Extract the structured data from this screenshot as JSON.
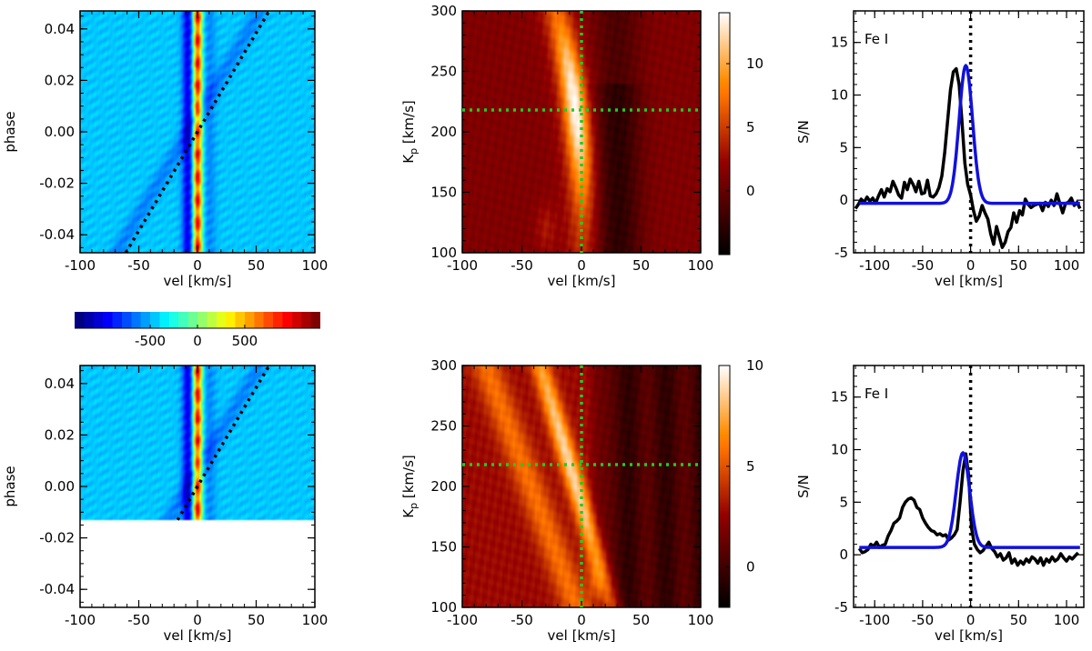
{
  "chart_data": [
    {
      "id": "tl",
      "type": "heatmap",
      "xlabel": "vel [km/s]",
      "ylabel": "phase",
      "xlim": [
        -100,
        100
      ],
      "ylim": [
        -0.047,
        0.047
      ],
      "xticks": [
        "-100",
        "-50",
        "0",
        "50",
        "100"
      ],
      "yticks": [
        "-0.04",
        "-0.02",
        "0.00",
        "0.02",
        "0.04"
      ],
      "data_phase_range": [
        -0.047,
        0.047
      ],
      "trail_velocity": 0,
      "planet_track": {
        "v_at_phase0": 0,
        "dv_dphase": 1300
      },
      "colormap": "jet"
    },
    {
      "id": "colorbar",
      "type": "colorbar",
      "colormap": "jet",
      "range": [
        -1300,
        1300
      ],
      "ticks": [
        "-500",
        "0",
        "500"
      ]
    },
    {
      "id": "bl",
      "type": "heatmap",
      "xlabel": "vel [km/s]",
      "ylabel": "phase",
      "xlim": [
        -100,
        100
      ],
      "ylim": [
        -0.047,
        0.047
      ],
      "xticks": [
        "-100",
        "-50",
        "0",
        "50",
        "100"
      ],
      "yticks": [
        "-0.04",
        "-0.02",
        "0.00",
        "0.02",
        "0.04"
      ],
      "data_phase_range": [
        -0.013,
        0.047
      ],
      "trail_velocity": 0,
      "planet_track": {
        "v_at_phase0": 0,
        "dv_dphase": 1300
      },
      "colormap": "jet"
    },
    {
      "id": "tm",
      "type": "heatmap",
      "xlabel": "vel [km/s]",
      "ylabel": "K",
      "ylabel_sub": "p",
      "ylabel_rest": " [km/s]",
      "xlim": [
        -100,
        100
      ],
      "ylim": [
        100,
        300
      ],
      "xticks": [
        "-100",
        "-50",
        "0",
        "50",
        "100"
      ],
      "yticks": [
        "100",
        "150",
        "200",
        "250",
        "300"
      ],
      "peak": {
        "vel": -5,
        "kp": 218
      },
      "crosshair": {
        "vel": 0,
        "kp": 218
      },
      "colormap": "gist_heat",
      "colorbar_range": [
        -5,
        14
      ],
      "colorbar_ticks": [
        "0",
        "5",
        "10"
      ]
    },
    {
      "id": "bm",
      "type": "heatmap",
      "xlabel": "vel [km/s]",
      "ylabel": "K",
      "ylabel_sub": "p",
      "ylabel_rest": " [km/s]",
      "xlim": [
        -100,
        100
      ],
      "ylim": [
        100,
        300
      ],
      "xticks": [
        "-100",
        "-50",
        "0",
        "50",
        "100"
      ],
      "yticks": [
        "100",
        "150",
        "200",
        "250",
        "300"
      ],
      "peak": {
        "vel": -10,
        "kp": 218
      },
      "crosshair": {
        "vel": 0,
        "kp": 218
      },
      "colormap": "gist_heat",
      "colorbar_range": [
        -2,
        10
      ],
      "colorbar_ticks": [
        "0",
        "5",
        "10"
      ]
    },
    {
      "id": "tr",
      "type": "line",
      "title": "",
      "annotation": "Fe I",
      "xlabel": "vel [km/s]",
      "ylabel": "S/N",
      "xlim": [
        -122,
        118
      ],
      "ylim": [
        -5,
        18
      ],
      "xticks": [
        "-100",
        "-50",
        "0",
        "50",
        "100"
      ],
      "yticks": [
        "-5",
        "0",
        "5",
        "10",
        "15"
      ],
      "vline": 0,
      "series": [
        {
          "color": "#000000",
          "x": [
            -120,
            -117,
            -114,
            -111,
            -108,
            -105,
            -102,
            -99,
            -96,
            -93,
            -90,
            -87,
            -84,
            -81,
            -78,
            -75,
            -72,
            -69,
            -66,
            -63,
            -60,
            -57,
            -54,
            -51,
            -48,
            -45,
            -42,
            -39,
            -36,
            -33,
            -30,
            -27,
            -24,
            -21,
            -18,
            -15,
            -12,
            -9,
            -6,
            -3,
            0,
            3,
            6,
            9,
            12,
            15,
            18,
            21,
            24,
            27,
            30,
            33,
            36,
            39,
            42,
            45,
            48,
            51,
            54,
            57,
            60,
            63,
            66,
            69,
            72,
            75,
            78,
            81,
            84,
            87,
            90,
            93,
            96,
            99,
            102,
            105,
            108,
            111,
            114
          ],
          "y": [
            -0.8,
            -0.4,
            0.1,
            -0.2,
            0.3,
            -0.1,
            0.2,
            -0.3,
            0.4,
            1.0,
            0.3,
            1.1,
            0.8,
            1.8,
            1.2,
            0.5,
            0.2,
            1.7,
            1.0,
            2.0,
            1.5,
            0.8,
            1.8,
            0.6,
            0.7,
            1.9,
            0.4,
            0.3,
            0.6,
            1.2,
            2.3,
            4.5,
            7.5,
            10.5,
            12.2,
            12.5,
            11.0,
            7.5,
            3.5,
            1.5,
            0.5,
            -1.0,
            -2.0,
            -1.5,
            -0.5,
            -1.2,
            -1.8,
            -3.2,
            -4.2,
            -2.5,
            -3.5,
            -4.5,
            -4.0,
            -3.0,
            -2.6,
            -1.2,
            -2.1,
            -1.0,
            -1.4,
            0.1,
            -0.4,
            -0.7,
            -0.5,
            -0.4,
            -0.3,
            -1.0,
            -0.2,
            -0.6,
            0.0,
            -0.5,
            0.6,
            -0.3,
            -1.2,
            -0.3,
            -0.2,
            0.2,
            -0.5,
            -0.2,
            -0.8
          ]
        },
        {
          "color": "#1111dd",
          "fit": {
            "type": "gaussian",
            "center": -5,
            "sigma": 7,
            "amplitude": 13.1,
            "offset": -0.3
          },
          "x": [],
          "y": []
        }
      ]
    },
    {
      "id": "br",
      "type": "line",
      "title": "",
      "annotation": "Fe I",
      "xlabel": "vel [km/s]",
      "ylabel": "S/N",
      "xlim": [
        -122,
        118
      ],
      "ylim": [
        -5,
        18
      ],
      "xticks": [
        "-100",
        "-50",
        "0",
        "50",
        "100"
      ],
      "yticks": [
        "-5",
        "0",
        "5",
        "10",
        "15"
      ],
      "vline": 0,
      "series": [
        {
          "color": "#000000",
          "x": [
            -116,
            -113,
            -110,
            -107,
            -104,
            -101,
            -98,
            -95,
            -92,
            -89,
            -86,
            -83,
            -80,
            -77,
            -74,
            -71,
            -68,
            -65,
            -62,
            -59,
            -56,
            -53,
            -50,
            -47,
            -44,
            -41,
            -38,
            -35,
            -32,
            -29,
            -26,
            -23,
            -20,
            -17,
            -14,
            -11,
            -8,
            -5,
            -2,
            1,
            4,
            7,
            10,
            13,
            16,
            19,
            22,
            25,
            28,
            31,
            34,
            37,
            40,
            43,
            46,
            49,
            52,
            55,
            58,
            61,
            64,
            67,
            70,
            73,
            76,
            79,
            82,
            85,
            88,
            91,
            94,
            97,
            100,
            103,
            106,
            109,
            112
          ],
          "y": [
            0.6,
            0.2,
            0.3,
            0.5,
            1.0,
            0.8,
            1.2,
            0.7,
            0.9,
            1.0,
            1.8,
            2.3,
            3.0,
            3.2,
            3.5,
            4.5,
            5.0,
            5.3,
            5.4,
            5.2,
            4.5,
            4.3,
            3.5,
            3.0,
            2.6,
            2.3,
            2.2,
            1.9,
            2.0,
            1.8,
            1.9,
            1.4,
            1.6,
            1.9,
            2.4,
            5.0,
            8.0,
            9.6,
            7.5,
            2.5,
            1.0,
            0.5,
            0.2,
            0.4,
            0.8,
            1.2,
            0.6,
            0.3,
            -0.2,
            0.1,
            -0.5,
            -0.3,
            0.2,
            -0.8,
            -0.4,
            -1.0,
            -0.6,
            -0.9,
            -0.4,
            -0.7,
            -0.2,
            -0.4,
            -0.8,
            -0.3,
            -1.0,
            -0.4,
            -0.7,
            -0.2,
            -0.6,
            -0.4,
            0.1,
            -0.3,
            -0.6,
            -0.2,
            -0.4,
            -0.1,
            0.2
          ]
        },
        {
          "color": "#1111dd",
          "fit": {
            "type": "gaussian",
            "center": -8,
            "sigma": 7,
            "amplitude": 9.0,
            "offset": 0.7
          },
          "x": [],
          "y": []
        }
      ]
    }
  ]
}
